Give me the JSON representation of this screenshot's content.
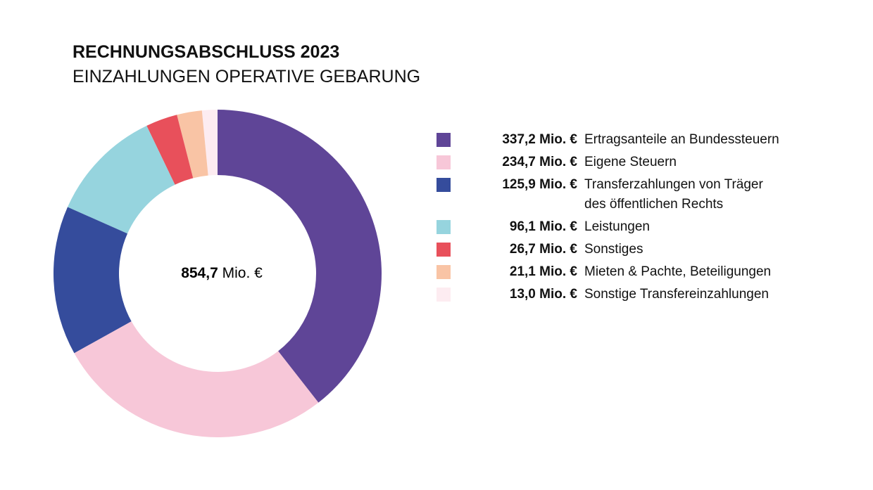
{
  "chart_data": {
    "type": "donut",
    "title": "RECHNUNGSABSCHLUSS 2023",
    "subtitle": "EINZAHLUNGEN OPERATIVE GEBARUNG",
    "categories": [
      "Ertragsanteile an Bundessteuern",
      "Eigene Steuern",
      "Transferzahlungen von Träger des öffentlichen Rechts",
      "Leistungen",
      "Sonstiges",
      "Mieten & Pachte, Beteiligungen",
      "Sonstige Transfereinzahlungen"
    ],
    "values": [
      337.2,
      234.7,
      125.9,
      96.1,
      26.7,
      21.1,
      13.0
    ],
    "value_labels": [
      "337,2 Mio. €",
      "234,7 Mio. €",
      "125,9 Mio. €",
      "96,1 Mio. €",
      "26,7 Mio. €",
      "21,1 Mio. €",
      "13,0 Mio. €"
    ],
    "colors": [
      "#5f4597",
      "#f7c7d8",
      "#354c9c",
      "#96d4de",
      "#e8505b",
      "#f9c4a5",
      "#fdecf1"
    ],
    "total": {
      "value": 854.7,
      "label": "854,7",
      "unit": "Mio. €"
    }
  }
}
